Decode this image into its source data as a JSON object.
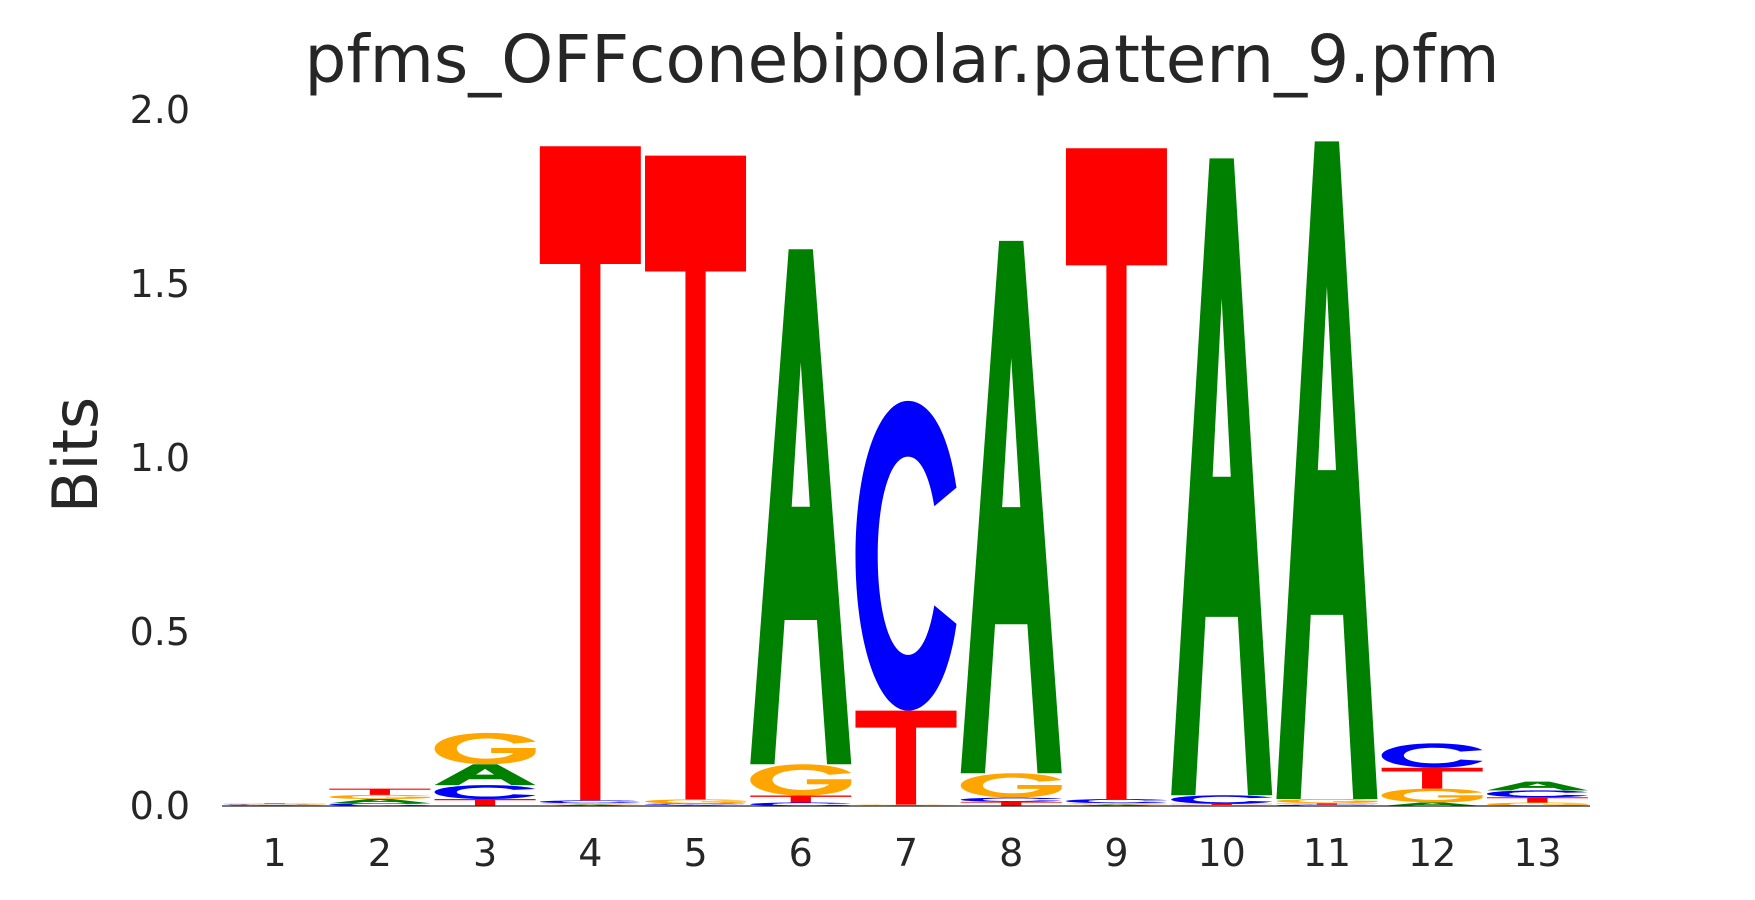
{
  "chart_data": {
    "type": "sequence-logo",
    "title": "pfms_OFFconebipolar.pattern_9.pfm",
    "xlabel": "",
    "ylabel": "Bits",
    "ylim": [
      0,
      2.0
    ],
    "yticks": [
      "0.0",
      "0.5",
      "1.0",
      "1.5",
      "2.0"
    ],
    "categories": [
      "1",
      "2",
      "3",
      "4",
      "5",
      "6",
      "7",
      "8",
      "9",
      "10",
      "11",
      "12",
      "13"
    ],
    "grid": false,
    "colors": {
      "A": "#008000",
      "C": "#0000ff",
      "G": "#ffa500",
      "T": "#ff0000"
    },
    "positions": [
      {
        "position": "1",
        "letters": [
          {
            "base": "A",
            "bits": 0.002
          },
          {
            "base": "C",
            "bits": 0.002
          },
          {
            "base": "G",
            "bits": 0.002
          },
          {
            "base": "T",
            "bits": 0.002
          }
        ]
      },
      {
        "position": "2",
        "letters": [
          {
            "base": "C",
            "bits": 0.008
          },
          {
            "base": "A",
            "bits": 0.012
          },
          {
            "base": "G",
            "bits": 0.012
          },
          {
            "base": "T",
            "bits": 0.018
          }
        ]
      },
      {
        "position": "3",
        "letters": [
          {
            "base": "T",
            "bits": 0.02
          },
          {
            "base": "C",
            "bits": 0.04
          },
          {
            "base": "A",
            "bits": 0.06
          },
          {
            "base": "G",
            "bits": 0.09
          }
        ]
      },
      {
        "position": "4",
        "letters": [
          {
            "base": "A",
            "bits": 0.004
          },
          {
            "base": "G",
            "bits": 0.004
          },
          {
            "base": "C",
            "bits": 0.008
          },
          {
            "base": "T",
            "bits": 1.88
          }
        ]
      },
      {
        "position": "5",
        "letters": [
          {
            "base": "A",
            "bits": 0.003
          },
          {
            "base": "C",
            "bits": 0.004
          },
          {
            "base": "G",
            "bits": 0.012
          },
          {
            "base": "T",
            "bits": 1.85
          }
        ]
      },
      {
        "position": "6",
        "letters": [
          {
            "base": "C",
            "bits": 0.01
          },
          {
            "base": "T",
            "bits": 0.02
          },
          {
            "base": "G",
            "bits": 0.09
          },
          {
            "base": "A",
            "bits": 1.48
          }
        ]
      },
      {
        "position": "7",
        "letters": [
          {
            "base": "A",
            "bits": 0.002
          },
          {
            "base": "G",
            "bits": 0.002
          },
          {
            "base": "T",
            "bits": 0.27
          },
          {
            "base": "C",
            "bits": 0.89
          }
        ]
      },
      {
        "position": "8",
        "letters": [
          {
            "base": "T",
            "bits": 0.012
          },
          {
            "base": "C",
            "bits": 0.012
          },
          {
            "base": "G",
            "bits": 0.07
          },
          {
            "base": "A",
            "bits": 1.53
          }
        ]
      },
      {
        "position": "9",
        "letters": [
          {
            "base": "A",
            "bits": 0.004
          },
          {
            "base": "G",
            "bits": 0.004
          },
          {
            "base": "C",
            "bits": 0.012
          },
          {
            "base": "T",
            "bits": 1.87
          }
        ]
      },
      {
        "position": "10",
        "letters": [
          {
            "base": "G",
            "bits": 0.003
          },
          {
            "base": "T",
            "bits": 0.003
          },
          {
            "base": "C",
            "bits": 0.025
          },
          {
            "base": "A",
            "bits": 1.83
          }
        ]
      },
      {
        "position": "11",
        "letters": [
          {
            "base": "C",
            "bits": 0.004
          },
          {
            "base": "T",
            "bits": 0.004
          },
          {
            "base": "G",
            "bits": 0.012
          },
          {
            "base": "A",
            "bits": 1.89
          }
        ]
      },
      {
        "position": "12",
        "letters": [
          {
            "base": "A",
            "bits": 0.01
          },
          {
            "base": "G",
            "bits": 0.04
          },
          {
            "base": "T",
            "bits": 0.06
          },
          {
            "base": "C",
            "bits": 0.07
          }
        ]
      },
      {
        "position": "13",
        "letters": [
          {
            "base": "G",
            "bits": 0.01
          },
          {
            "base": "T",
            "bits": 0.015
          },
          {
            "base": "C",
            "bits": 0.02
          },
          {
            "base": "A",
            "bits": 0.025
          }
        ]
      }
    ]
  }
}
